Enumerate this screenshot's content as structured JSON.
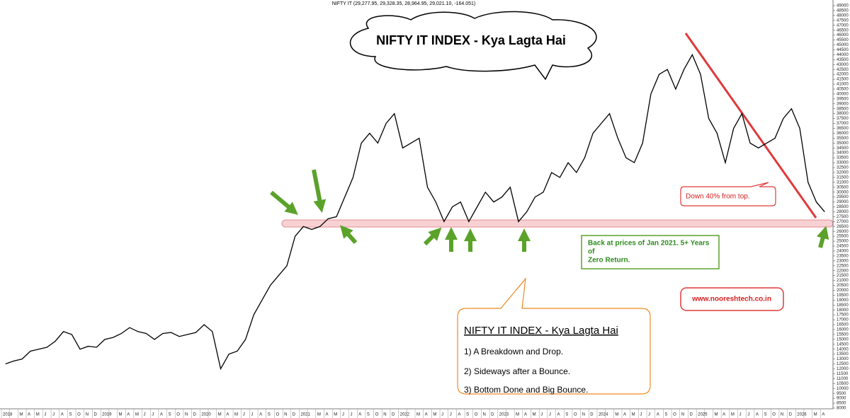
{
  "chart_data": {
    "type": "line",
    "header": "NIFTY IT (29,277.95, 29,328.35, 28,964.95, 29,021.10, -164.051)",
    "color": "#000000",
    "categories": [
      "2018",
      null,
      "M",
      "A",
      "M",
      "J",
      "J",
      "A",
      "S",
      "O",
      "N",
      "D",
      "2019",
      null,
      "M",
      "A",
      "M",
      "J",
      "J",
      "A",
      "S",
      "O",
      "N",
      "D",
      "2020",
      null,
      "M",
      "A",
      "M",
      "J",
      "J",
      "A",
      "S",
      "O",
      "N",
      "D",
      "2021",
      null,
      "M",
      "A",
      "M",
      "J",
      "J",
      "A",
      "S",
      "O",
      "N",
      "D",
      "2022",
      null,
      "M",
      "A",
      "M",
      "J",
      "J",
      "A",
      "S",
      "O",
      "N",
      "D",
      "2023",
      null,
      "M",
      "A",
      "M",
      "J",
      "J",
      "A",
      "S",
      "O",
      "N",
      "D",
      "2024",
      null,
      "M",
      "A",
      "M",
      "J",
      "J",
      "A",
      "S",
      "O",
      "N",
      "D",
      "2025",
      null,
      "M",
      "A",
      "M",
      "J",
      "J",
      "A",
      "S",
      "O",
      "N",
      "D",
      "2026",
      null,
      "M",
      "A"
    ],
    "values": [
      12500,
      12800,
      13000,
      13800,
      14000,
      14200,
      14800,
      15800,
      15500,
      14000,
      14300,
      14200,
      15000,
      15200,
      15600,
      16200,
      15800,
      15600,
      15000,
      15600,
      15700,
      15300,
      15500,
      15700,
      16500,
      15800,
      12000,
      13500,
      13800,
      15000,
      17500,
      19000,
      20500,
      21500,
      22500,
      25500,
      26500,
      26200,
      26500,
      27300,
      27500,
      29500,
      31500,
      35000,
      36000,
      35000,
      37000,
      38000,
      34500,
      35000,
      35500,
      30500,
      29000,
      27000,
      28500,
      29000,
      27000,
      28500,
      30000,
      29000,
      29500,
      30500,
      27000,
      28000,
      29500,
      30000,
      32000,
      31500,
      33000,
      32000,
      33500,
      36000,
      37000,
      38000,
      35500,
      33500,
      33000,
      35000,
      40000,
      42000,
      42500,
      40500,
      42500,
      44000,
      42000,
      37500,
      36000,
      33000,
      36500,
      38000,
      35000,
      34500,
      35000,
      35500,
      37500,
      38500,
      36500,
      31000,
      29000,
      28000
    ],
    "ylim": [
      8000,
      49000
    ],
    "yticks": [
      8000,
      8500,
      9000,
      9500,
      10000,
      10500,
      11000,
      11500,
      12000,
      12500,
      13000,
      13500,
      14000,
      14500,
      15000,
      15500,
      16000,
      16500,
      17000,
      17500,
      18000,
      18500,
      19000,
      19500,
      20000,
      20500,
      21000,
      21500,
      22000,
      22500,
      23000,
      23500,
      24000,
      24500,
      25000,
      25500,
      26000,
      26500,
      27000,
      27500,
      28000,
      28500,
      29000,
      29500,
      30000,
      30500,
      31000,
      31500,
      32000,
      32500,
      33000,
      33500,
      34000,
      34500,
      35000,
      35500,
      36000,
      36500,
      37000,
      37500,
      38000,
      38500,
      39000,
      39500,
      40000,
      40500,
      41000,
      41500,
      42000,
      42500,
      43000,
      43500,
      44000,
      44500,
      45000,
      45500,
      46000,
      46500,
      47000,
      47500,
      48000,
      48500,
      49000
    ],
    "annotations": {
      "title_bubble": "NIFTY IT INDEX - Kya Lagta Hai",
      "down_note": "Down 40% from top.",
      "back_note": [
        "Back at prices of Jan 2021. 5+ Years",
        "of",
        "Zero Return."
      ],
      "box_heading": "NIFTY IT INDEX - Kya Lagta Hai",
      "box_items": [
        "1) A Breakdown and Drop.",
        "2) Sideways after a Bounce.",
        "3) Bottom Done and Big Bounce."
      ],
      "website": "www.nooreshtech.co.in"
    }
  }
}
